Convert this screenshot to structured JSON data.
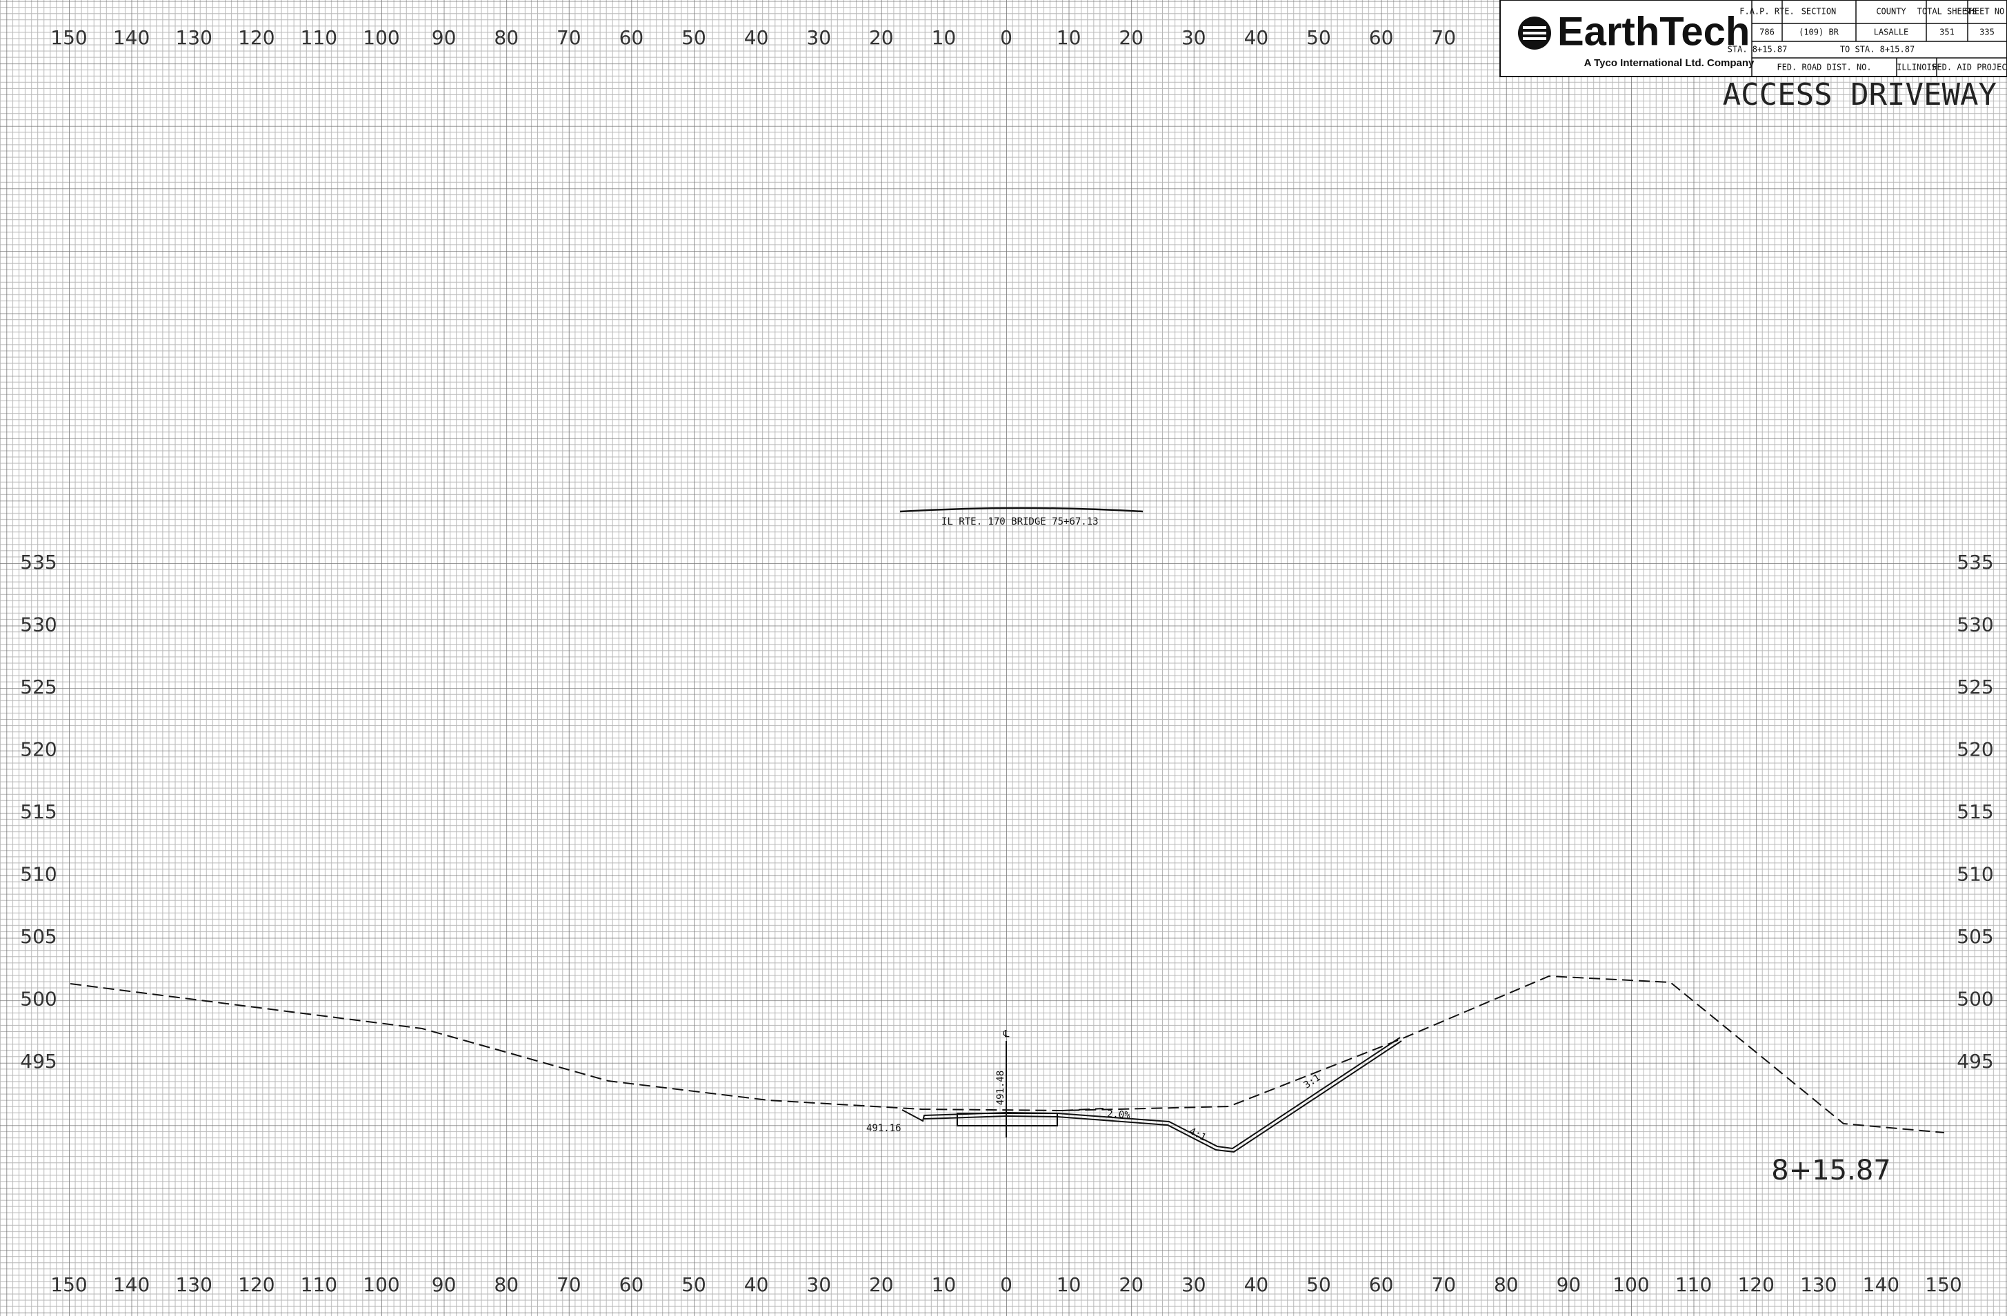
{
  "title_block": {
    "company": "EarthTech",
    "tagline": "A Tyco International Ltd. Company",
    "headers": [
      "F.A.P. RTE.",
      "SECTION",
      "COUNTY",
      "TOTAL SHEETS",
      "SHEET NO."
    ],
    "row": [
      "786",
      "(109) BR",
      "LASALLE",
      "351",
      "335"
    ],
    "station_from": "STA. 8+15.87",
    "station_to": "TO STA. 8+15.87",
    "footer": [
      "FED. ROAD DIST. NO.",
      "ILLINOIS",
      "FED. AID PROJECT"
    ]
  },
  "sheet_title": "ACCESS DRIVEWAY",
  "station": "8+15.87",
  "offsets_top": {
    "left": [
      150,
      140,
      130,
      120,
      110,
      100,
      90,
      80,
      70,
      60,
      50,
      40,
      30,
      20,
      10
    ],
    "center": 0,
    "right": [
      10,
      20,
      30,
      40,
      50,
      60,
      70
    ]
  },
  "offsets_bottom": {
    "left": [
      150,
      140,
      130,
      120,
      110,
      100,
      90,
      80,
      70,
      60,
      50,
      40,
      30,
      20,
      10
    ],
    "center": 0,
    "right": [
      10,
      20,
      30,
      40,
      50,
      60,
      70,
      80,
      90,
      100,
      110,
      120,
      130,
      140,
      150
    ]
  },
  "elevations_left": [
    535,
    530,
    525,
    520,
    515,
    510,
    505,
    500,
    495
  ],
  "elevations_right": [
    535,
    530,
    525,
    520,
    515,
    510,
    505,
    500,
    495
  ],
  "annotations": {
    "bridge": "IL RTE. 170 BRIDGE   75+67.13",
    "centerline": "℄",
    "centerline_elev": "491.48",
    "left_elev": "491.16",
    "cross_slope": "2.0%",
    "slope_4_1": "4:1",
    "slope_3_1": "3:1"
  }
}
